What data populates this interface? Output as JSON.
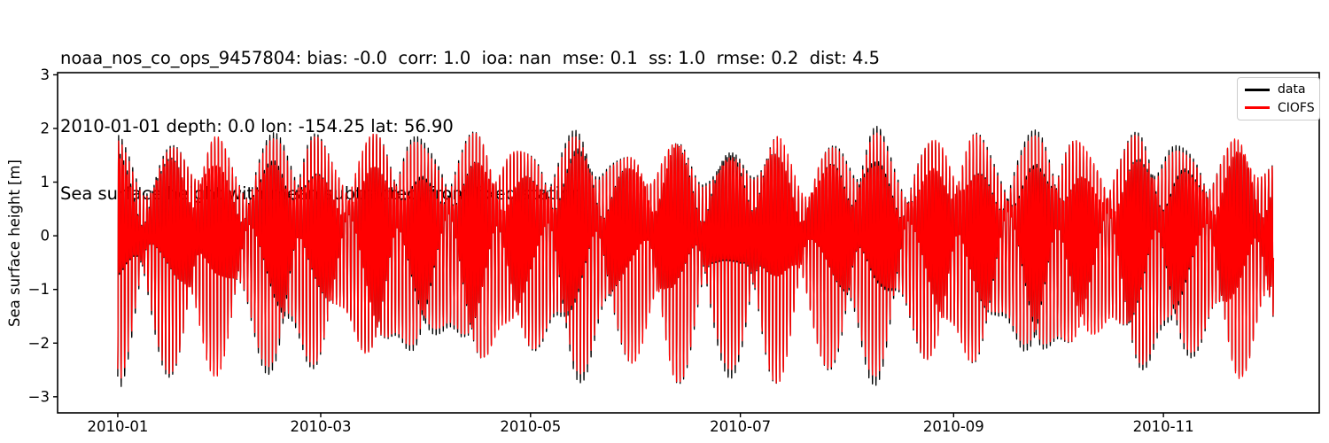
{
  "titles": {
    "stats_line": "noaa_nos_co_ops_9457804: bias: -0.0  corr: 1.0  ioa: nan  mse: 0.1  ss: 1.0  rmse: 0.2  dist: 4.5",
    "meta_line": "2010-01-01 depth: 0.0 lon: -154.25 lat: 56.90",
    "plot_title": "Sea surface height with mean subtracted, from fixed station"
  },
  "station_stats": {
    "station_id": "noaa_nos_co_ops_9457804",
    "bias": "-0.0",
    "corr": "1.0",
    "ioa": "nan",
    "mse": "0.1",
    "ss": "1.0",
    "rmse": "0.2",
    "dist": "4.5",
    "start_date": "2010-01-01",
    "depth": "0.0",
    "lon": "-154.25",
    "lat": "56.90"
  },
  "chart_data": {
    "type": "line",
    "title": "Sea surface height with mean subtracted, from fixed station",
    "xlabel": "",
    "ylabel": "Sea surface height [m]",
    "x_start_date": "2010-01-01",
    "x_tick_labels": [
      "2010-01",
      "2010-03",
      "2010-05",
      "2010-07",
      "2010-09",
      "2010-11"
    ],
    "x_tick_days": [
      0,
      59,
      120,
      181,
      243,
      304
    ],
    "y_ticks": [
      3,
      2,
      1,
      0,
      -1,
      -2,
      -3
    ],
    "ylim": [
      -3.3,
      3.04
    ],
    "xlim_days": [
      -17.5,
      349.3
    ],
    "data_span_days": [
      0,
      336
    ],
    "grid": false,
    "background": "#ffffff",
    "frame_color": "#000000",
    "legend": {
      "position": "upper right",
      "entries": [
        {
          "label": "data",
          "color": "#000000"
        },
        {
          "label": "CIOFS",
          "color": "#ff0000"
        }
      ]
    },
    "description": "Mixed semidiurnal tidal signal, ~336 days; spring-neap modulated envelope between about ±0.9 m (neap) and +2.6/−2.95 m (spring); black observed data slightly exceeds red CIOFS model at several spring peaks.",
    "synthesis": {
      "sample_step_days": 0.03,
      "positive_scale": 0.97,
      "negative_scale": 1.06,
      "spring_neap_period_days": 14.77,
      "constituents": [
        {
          "name": "M2",
          "amplitude": 1.08,
          "period_days": 0.51753,
          "phase_days": 0.21
        },
        {
          "name": "S2",
          "amplitude": 0.44,
          "period_days": 0.5,
          "phase_days": 0.21
        },
        {
          "name": "N2",
          "amplitude": 0.18,
          "period_days": 0.52743,
          "phase_days": 0.3
        },
        {
          "name": "K1",
          "amplitude": 0.64,
          "period_days": 0.99727,
          "phase_days": 0.45
        },
        {
          "name": "O1",
          "amplitude": 0.33,
          "period_days": 1.07581,
          "phase_days": 0.45
        }
      ]
    },
    "series": [
      {
        "name": "data",
        "color": "#000000",
        "linewidth": 1.3,
        "amp_scale_base": 1.025,
        "amp_scale_mod": 0.04,
        "amp_scale_period_days": 43.0,
        "amp_scale_phase": 0.9
      },
      {
        "name": "CIOFS",
        "color": "#ff0000",
        "linewidth": 1.3,
        "amp_scale_base": 1.0,
        "amp_scale_mod": 0.0,
        "amp_scale_period_days": 43.0,
        "amp_scale_phase": 0.0
      }
    ]
  }
}
